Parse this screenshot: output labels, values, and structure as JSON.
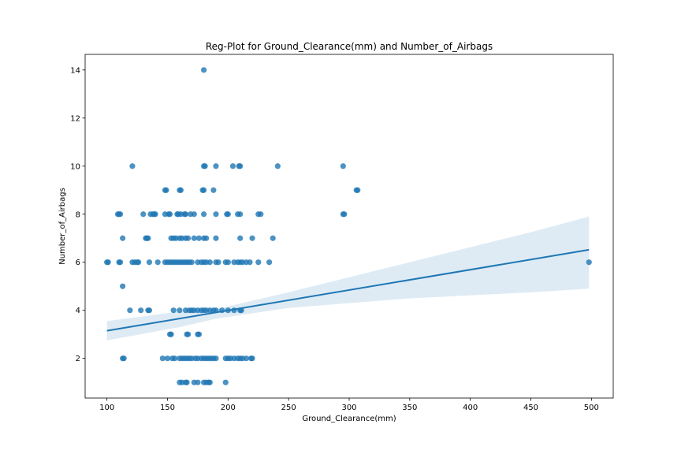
{
  "chart_data": {
    "type": "scatter",
    "title": "Reg-Plot for Ground_Clearance(mm) and Number_of_Airbags",
    "xlabel": "Ground_Clearance(mm)",
    "ylabel": "Number_of_Airbags",
    "xlim": [
      82,
      518
    ],
    "ylim": [
      0.35,
      14.65
    ],
    "x_ticks": [
      100,
      150,
      200,
      250,
      300,
      350,
      400,
      450,
      500
    ],
    "y_ticks": [
      2,
      4,
      6,
      8,
      10,
      12,
      14
    ],
    "grid": false,
    "point_color": "#1f77b4",
    "line_color": "#1f77b4",
    "band_color": "#1f77b4",
    "points": [
      {
        "x": 180,
        "y": 14
      },
      {
        "x": 121,
        "y": 10
      },
      {
        "x": 180,
        "y": 10
      },
      {
        "x": 181,
        "y": 10
      },
      {
        "x": 190,
        "y": 10
      },
      {
        "x": 204,
        "y": 10
      },
      {
        "x": 209,
        "y": 10
      },
      {
        "x": 210,
        "y": 10
      },
      {
        "x": 241,
        "y": 10
      },
      {
        "x": 295,
        "y": 10
      },
      {
        "x": 148,
        "y": 9
      },
      {
        "x": 149,
        "y": 9
      },
      {
        "x": 160,
        "y": 9
      },
      {
        "x": 161,
        "y": 9
      },
      {
        "x": 179,
        "y": 9
      },
      {
        "x": 180,
        "y": 9
      },
      {
        "x": 188,
        "y": 9
      },
      {
        "x": 306,
        "y": 9
      },
      {
        "x": 307,
        "y": 9
      },
      {
        "x": 109,
        "y": 8
      },
      {
        "x": 110,
        "y": 8
      },
      {
        "x": 111,
        "y": 8
      },
      {
        "x": 130,
        "y": 8
      },
      {
        "x": 136,
        "y": 8
      },
      {
        "x": 138,
        "y": 8
      },
      {
        "x": 139,
        "y": 8
      },
      {
        "x": 140,
        "y": 8
      },
      {
        "x": 148,
        "y": 8
      },
      {
        "x": 151,
        "y": 8
      },
      {
        "x": 152,
        "y": 8
      },
      {
        "x": 158,
        "y": 8
      },
      {
        "x": 159,
        "y": 8
      },
      {
        "x": 161,
        "y": 8
      },
      {
        "x": 164,
        "y": 8
      },
      {
        "x": 165,
        "y": 8
      },
      {
        "x": 169,
        "y": 8
      },
      {
        "x": 172,
        "y": 8
      },
      {
        "x": 180,
        "y": 8
      },
      {
        "x": 190,
        "y": 8
      },
      {
        "x": 199,
        "y": 8
      },
      {
        "x": 200,
        "y": 8
      },
      {
        "x": 208,
        "y": 8
      },
      {
        "x": 210,
        "y": 8
      },
      {
        "x": 225,
        "y": 8
      },
      {
        "x": 227,
        "y": 8
      },
      {
        "x": 295,
        "y": 8
      },
      {
        "x": 296,
        "y": 8
      },
      {
        "x": 113,
        "y": 7
      },
      {
        "x": 132,
        "y": 7
      },
      {
        "x": 133,
        "y": 7
      },
      {
        "x": 134,
        "y": 7
      },
      {
        "x": 153,
        "y": 7
      },
      {
        "x": 155,
        "y": 7
      },
      {
        "x": 157,
        "y": 7
      },
      {
        "x": 160,
        "y": 7
      },
      {
        "x": 162,
        "y": 7
      },
      {
        "x": 165,
        "y": 7
      },
      {
        "x": 167,
        "y": 7
      },
      {
        "x": 172,
        "y": 7
      },
      {
        "x": 176,
        "y": 7
      },
      {
        "x": 180,
        "y": 7
      },
      {
        "x": 182,
        "y": 7
      },
      {
        "x": 190,
        "y": 7
      },
      {
        "x": 210,
        "y": 7
      },
      {
        "x": 220,
        "y": 7
      },
      {
        "x": 237,
        "y": 7
      },
      {
        "x": 100,
        "y": 6
      },
      {
        "x": 101,
        "y": 6
      },
      {
        "x": 110,
        "y": 6
      },
      {
        "x": 111,
        "y": 6
      },
      {
        "x": 121,
        "y": 6
      },
      {
        "x": 123,
        "y": 6
      },
      {
        "x": 125,
        "y": 6
      },
      {
        "x": 126,
        "y": 6
      },
      {
        "x": 135,
        "y": 6
      },
      {
        "x": 142,
        "y": 6
      },
      {
        "x": 148,
        "y": 6
      },
      {
        "x": 150,
        "y": 6
      },
      {
        "x": 152,
        "y": 6
      },
      {
        "x": 154,
        "y": 6
      },
      {
        "x": 156,
        "y": 6
      },
      {
        "x": 158,
        "y": 6
      },
      {
        "x": 160,
        "y": 6
      },
      {
        "x": 162,
        "y": 6
      },
      {
        "x": 164,
        "y": 6
      },
      {
        "x": 166,
        "y": 6
      },
      {
        "x": 168,
        "y": 6
      },
      {
        "x": 170,
        "y": 6
      },
      {
        "x": 175,
        "y": 6
      },
      {
        "x": 178,
        "y": 6
      },
      {
        "x": 180,
        "y": 6
      },
      {
        "x": 182,
        "y": 6
      },
      {
        "x": 185,
        "y": 6
      },
      {
        "x": 190,
        "y": 6
      },
      {
        "x": 192,
        "y": 6
      },
      {
        "x": 198,
        "y": 6
      },
      {
        "x": 200,
        "y": 6
      },
      {
        "x": 205,
        "y": 6
      },
      {
        "x": 208,
        "y": 6
      },
      {
        "x": 210,
        "y": 6
      },
      {
        "x": 212,
        "y": 6
      },
      {
        "x": 215,
        "y": 6
      },
      {
        "x": 218,
        "y": 6
      },
      {
        "x": 225,
        "y": 6
      },
      {
        "x": 234,
        "y": 6
      },
      {
        "x": 498,
        "y": 6
      },
      {
        "x": 113,
        "y": 5
      },
      {
        "x": 119,
        "y": 4
      },
      {
        "x": 128,
        "y": 4
      },
      {
        "x": 134,
        "y": 4
      },
      {
        "x": 135,
        "y": 4
      },
      {
        "x": 155,
        "y": 4
      },
      {
        "x": 160,
        "y": 4
      },
      {
        "x": 165,
        "y": 4
      },
      {
        "x": 168,
        "y": 4
      },
      {
        "x": 170,
        "y": 4
      },
      {
        "x": 172,
        "y": 4
      },
      {
        "x": 175,
        "y": 4
      },
      {
        "x": 178,
        "y": 4
      },
      {
        "x": 180,
        "y": 4
      },
      {
        "x": 182,
        "y": 4
      },
      {
        "x": 185,
        "y": 4
      },
      {
        "x": 188,
        "y": 4
      },
      {
        "x": 190,
        "y": 4
      },
      {
        "x": 195,
        "y": 4
      },
      {
        "x": 200,
        "y": 4
      },
      {
        "x": 205,
        "y": 4
      },
      {
        "x": 210,
        "y": 4
      },
      {
        "x": 211,
        "y": 4
      },
      {
        "x": 152,
        "y": 3
      },
      {
        "x": 153,
        "y": 3
      },
      {
        "x": 166,
        "y": 3
      },
      {
        "x": 167,
        "y": 3
      },
      {
        "x": 175,
        "y": 3
      },
      {
        "x": 176,
        "y": 3
      },
      {
        "x": 113,
        "y": 2
      },
      {
        "x": 114,
        "y": 2
      },
      {
        "x": 146,
        "y": 2
      },
      {
        "x": 150,
        "y": 2
      },
      {
        "x": 154,
        "y": 2
      },
      {
        "x": 156,
        "y": 2
      },
      {
        "x": 160,
        "y": 2
      },
      {
        "x": 162,
        "y": 2
      },
      {
        "x": 164,
        "y": 2
      },
      {
        "x": 166,
        "y": 2
      },
      {
        "x": 168,
        "y": 2
      },
      {
        "x": 170,
        "y": 2
      },
      {
        "x": 173,
        "y": 2
      },
      {
        "x": 175,
        "y": 2
      },
      {
        "x": 178,
        "y": 2
      },
      {
        "x": 180,
        "y": 2
      },
      {
        "x": 182,
        "y": 2
      },
      {
        "x": 184,
        "y": 2
      },
      {
        "x": 186,
        "y": 2
      },
      {
        "x": 188,
        "y": 2
      },
      {
        "x": 190,
        "y": 2
      },
      {
        "x": 198,
        "y": 2
      },
      {
        "x": 200,
        "y": 2
      },
      {
        "x": 202,
        "y": 2
      },
      {
        "x": 205,
        "y": 2
      },
      {
        "x": 208,
        "y": 2
      },
      {
        "x": 210,
        "y": 2
      },
      {
        "x": 212,
        "y": 2
      },
      {
        "x": 215,
        "y": 2
      },
      {
        "x": 219,
        "y": 2
      },
      {
        "x": 220,
        "y": 2
      },
      {
        "x": 160,
        "y": 1
      },
      {
        "x": 162,
        "y": 1
      },
      {
        "x": 165,
        "y": 1
      },
      {
        "x": 166,
        "y": 1
      },
      {
        "x": 172,
        "y": 1
      },
      {
        "x": 175,
        "y": 1
      },
      {
        "x": 180,
        "y": 1
      },
      {
        "x": 182,
        "y": 1
      },
      {
        "x": 184,
        "y": 1
      },
      {
        "x": 185,
        "y": 1
      },
      {
        "x": 198,
        "y": 1
      }
    ],
    "regression": {
      "line": [
        [
          100,
          3.15
        ],
        [
          498,
          6.52
        ]
      ],
      "band_upper": [
        [
          100,
          3.55
        ],
        [
          160,
          3.95
        ],
        [
          190,
          4.05
        ],
        [
          250,
          4.75
        ],
        [
          350,
          6.0
        ],
        [
          450,
          7.25
        ],
        [
          498,
          7.9
        ]
      ],
      "band_lower": [
        [
          100,
          2.75
        ],
        [
          160,
          3.3
        ],
        [
          190,
          3.65
        ],
        [
          250,
          4.1
        ],
        [
          350,
          4.5
        ],
        [
          450,
          4.75
        ],
        [
          498,
          4.9
        ]
      ]
    }
  }
}
